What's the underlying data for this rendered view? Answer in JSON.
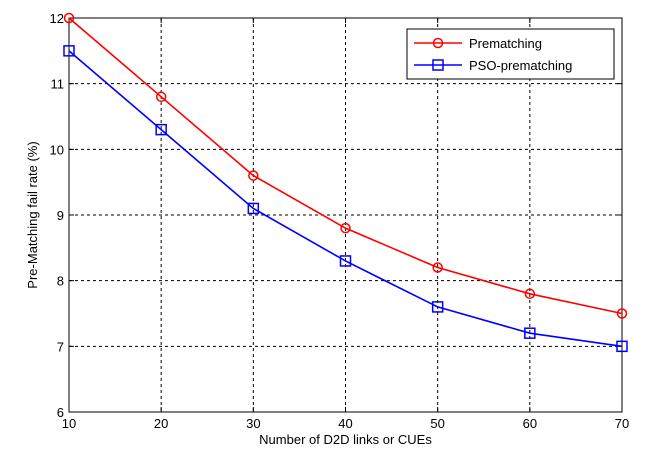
{
  "chart_data": {
    "type": "line",
    "title": "",
    "xlabel": "Number of D2D links or CUEs",
    "ylabel": "Pre-Matching fail rate (%)",
    "x": [
      10,
      20,
      30,
      40,
      50,
      60,
      70
    ],
    "xlim": [
      10,
      70
    ],
    "ylim": [
      6,
      12
    ],
    "xticks": [
      10,
      20,
      30,
      40,
      50,
      60,
      70
    ],
    "yticks": [
      6,
      7,
      8,
      9,
      10,
      11,
      12
    ],
    "grid": true,
    "legend_position": "top-right",
    "series": [
      {
        "name": "Prematching",
        "color": "#ff0000",
        "marker": "circle",
        "values": [
          12.0,
          10.8,
          9.6,
          8.8,
          8.2,
          7.8,
          7.5
        ]
      },
      {
        "name": "PSO-prematching",
        "color": "#0000ff",
        "marker": "square",
        "values": [
          11.5,
          10.3,
          9.1,
          8.3,
          7.6,
          7.2,
          7.0
        ]
      }
    ]
  }
}
